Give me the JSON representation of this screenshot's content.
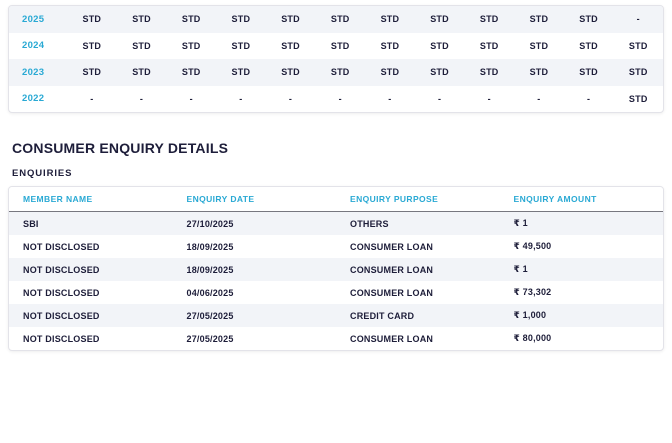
{
  "colors": {
    "accent": "#29a9d4",
    "text": "#1d1d39",
    "row_alt": "#f2f4f8",
    "border": "#e3e3e9"
  },
  "payment_history": {
    "rows": [
      {
        "year": "2025",
        "values": [
          "STD",
          "STD",
          "STD",
          "STD",
          "STD",
          "STD",
          "STD",
          "STD",
          "STD",
          "STD",
          "STD",
          "-"
        ]
      },
      {
        "year": "2024",
        "values": [
          "STD",
          "STD",
          "STD",
          "STD",
          "STD",
          "STD",
          "STD",
          "STD",
          "STD",
          "STD",
          "STD",
          "STD"
        ]
      },
      {
        "year": "2023",
        "values": [
          "STD",
          "STD",
          "STD",
          "STD",
          "STD",
          "STD",
          "STD",
          "STD",
          "STD",
          "STD",
          "STD",
          "STD"
        ]
      },
      {
        "year": "2022",
        "values": [
          "-",
          "-",
          "-",
          "-",
          "-",
          "-",
          "-",
          "-",
          "-",
          "-",
          "-",
          "STD"
        ]
      }
    ]
  },
  "section": {
    "title": "CONSUMER ENQUIRY DETAILS",
    "subtitle": "ENQUIRIES"
  },
  "enquiries_table": {
    "columns": [
      "MEMBER NAME",
      "ENQUIRY DATE",
      "ENQUIRY PURPOSE",
      "ENQUIRY AMOUNT"
    ],
    "rows": [
      {
        "member_name": "SBI",
        "enquiry_date": "27/10/2025",
        "enquiry_purpose": "OTHERS",
        "enquiry_amount": "₹ 1"
      },
      {
        "member_name": "NOT DISCLOSED",
        "enquiry_date": "18/09/2025",
        "enquiry_purpose": "CONSUMER LOAN",
        "enquiry_amount": "₹ 49,500"
      },
      {
        "member_name": "NOT DISCLOSED",
        "enquiry_date": "18/09/2025",
        "enquiry_purpose": "CONSUMER LOAN",
        "enquiry_amount": "₹ 1"
      },
      {
        "member_name": "NOT DISCLOSED",
        "enquiry_date": "04/06/2025",
        "enquiry_purpose": "CONSUMER LOAN",
        "enquiry_amount": "₹ 73,302"
      },
      {
        "member_name": "NOT DISCLOSED",
        "enquiry_date": "27/05/2025",
        "enquiry_purpose": "CREDIT CARD",
        "enquiry_amount": "₹ 1,000"
      },
      {
        "member_name": "NOT DISCLOSED",
        "enquiry_date": "27/05/2025",
        "enquiry_purpose": "CONSUMER LOAN",
        "enquiry_amount": "₹ 80,000"
      }
    ]
  }
}
